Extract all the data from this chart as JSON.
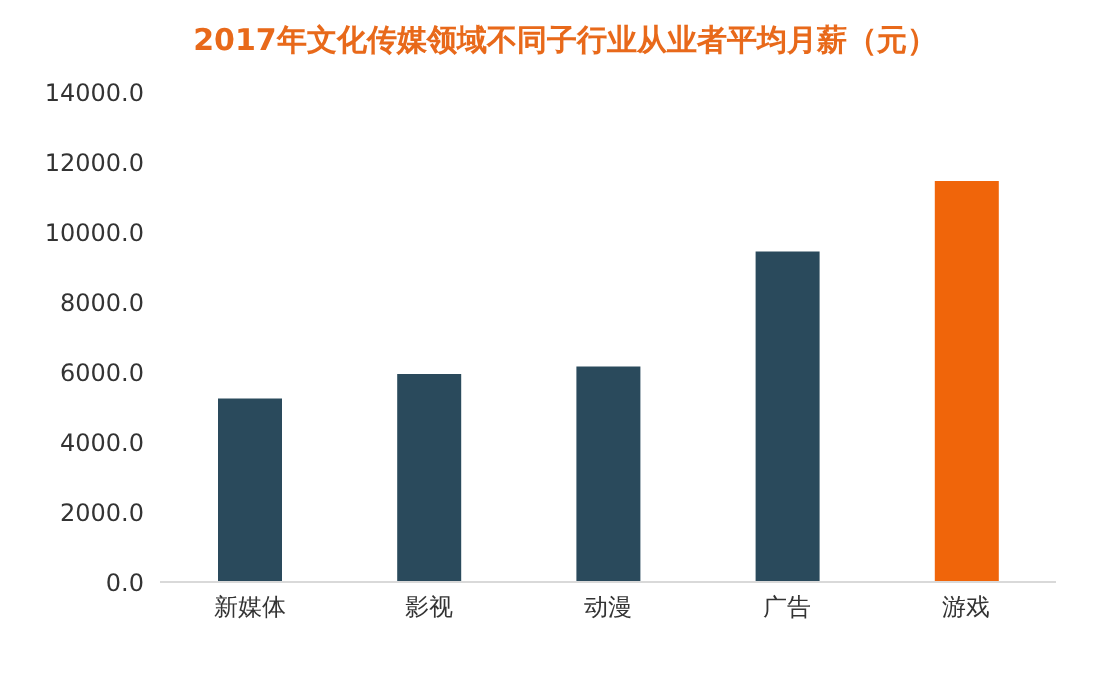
{
  "chart_data": {
    "type": "bar",
    "title": "2017年文化传媒领域不同子行业从业者平均月薪（元）",
    "categories": [
      "新媒体",
      "影视",
      "动漫",
      "广告",
      "游戏"
    ],
    "values": [
      5240,
      5940,
      6160,
      9440,
      11460
    ],
    "colors": [
      "#2a4a5c",
      "#2a4a5c",
      "#2a4a5c",
      "#2a4a5c",
      "#f0650a"
    ],
    "ylim": [
      0,
      14000
    ],
    "yticks": [
      {
        "value": 0,
        "label": "0.0"
      },
      {
        "value": 2000,
        "label": "2000.0"
      },
      {
        "value": 4000,
        "label": "4000.0"
      },
      {
        "value": 6000,
        "label": "6000.0"
      },
      {
        "value": 8000,
        "label": "8000.0"
      },
      {
        "value": 10000,
        "label": "10000.0"
      },
      {
        "value": 12000,
        "label": "12000.0"
      },
      {
        "value": 14000,
        "label": "14000.0"
      }
    ],
    "grid": false
  }
}
